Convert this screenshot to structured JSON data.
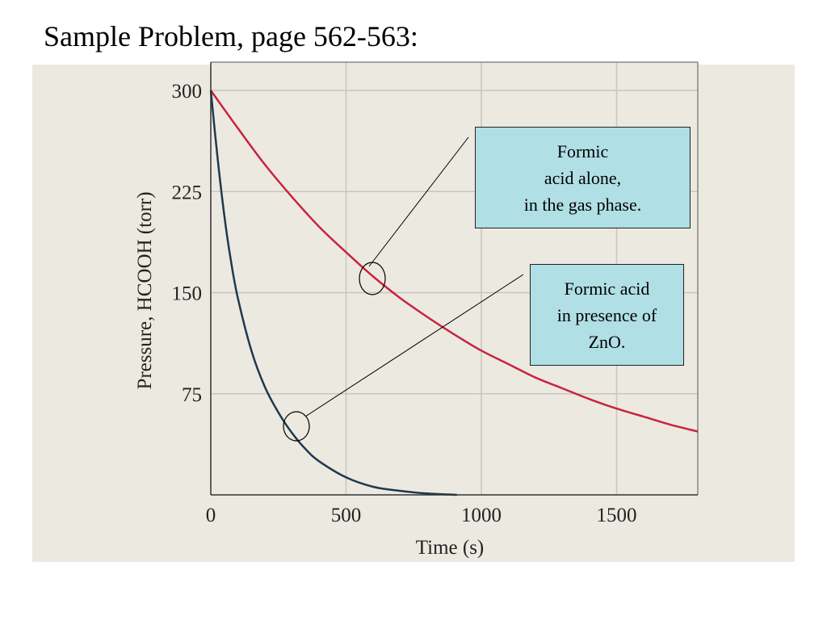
{
  "slide_title": "Sample Problem, page 562-563:",
  "callouts": {
    "gas_phase": [
      "Formic",
      "acid alone,",
      "in the gas phase."
    ],
    "zno": [
      "Formic acid",
      "in presence of",
      "ZnO."
    ]
  },
  "colors": {
    "gas_phase_curve": "#c8243f",
    "zno_curve": "#1e3a4e",
    "callout_fill": "#b0dfe5",
    "panel_background": "#ece9e1",
    "plot_background": "#ece9e1"
  },
  "chart_data": {
    "type": "line",
    "title": "",
    "xlabel": "Time (s)",
    "ylabel": "Pressure, HCOOH (torr)",
    "xlim": [
      0,
      1800
    ],
    "ylim": [
      0,
      300
    ],
    "x_ticks": [
      0,
      500,
      1000,
      1500
    ],
    "y_ticks": [
      75,
      150,
      225,
      300
    ],
    "grid": true,
    "series": [
      {
        "key": "gas_phase",
        "x": [
          0,
          100,
          200,
          300,
          400,
          500,
          600,
          700,
          800,
          900,
          1000,
          1100,
          1200,
          1300,
          1400,
          1500,
          1600,
          1700,
          1800
        ],
        "y": [
          300,
          272,
          245,
          221,
          199,
          180,
          162,
          146,
          132,
          119,
          107,
          97,
          87,
          79,
          71,
          64,
          58,
          52,
          47
        ]
      },
      {
        "key": "zno",
        "x": [
          0,
          25,
          50,
          75,
          100,
          150,
          200,
          250,
          300,
          350,
          400,
          500,
          600,
          700,
          800,
          910
        ],
        "y": [
          300,
          250,
          207,
          173,
          146,
          107,
          80,
          61,
          46,
          34,
          25,
          13,
          6,
          3,
          1,
          0
        ]
      }
    ]
  }
}
